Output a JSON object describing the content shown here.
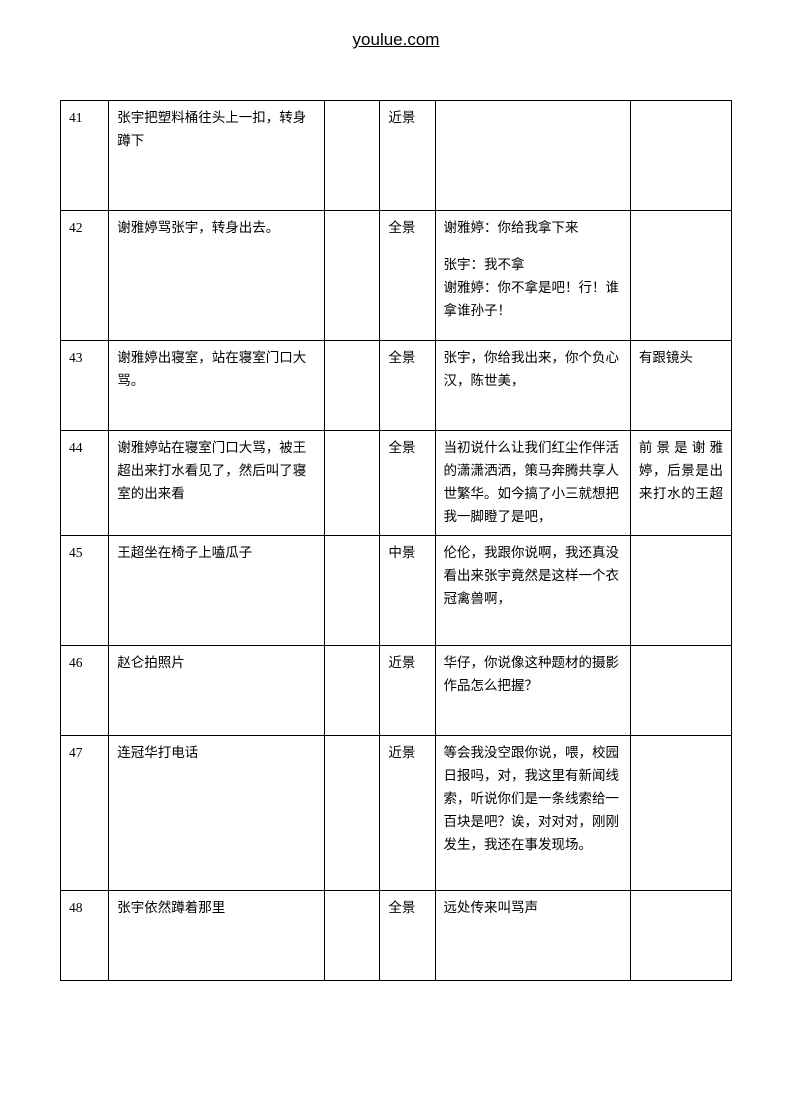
{
  "header": {
    "title": "youlue.com"
  },
  "table": {
    "columns": {
      "c1": 42,
      "c2": 188,
      "c3": 48,
      "c4": 48,
      "c5": 170,
      "c6": 88
    },
    "border_color": "#000000",
    "font_family": "SimSun",
    "rows": [
      {
        "no": "41",
        "action": "张宇把塑料桶往头上一扣，转身蹲下",
        "col3": "",
        "shot": "近景",
        "dialogue": "",
        "note": ""
      },
      {
        "no": "42",
        "action": "谢雅婷骂张宇，转身出去。",
        "col3": "",
        "shot": "全景",
        "dialogue_lines": [
          "谢雅婷：你给我拿下来",
          "",
          "张宇：我不拿",
          "谢雅婷：你不拿是吧！行！谁拿谁孙子！"
        ],
        "note": ""
      },
      {
        "no": "43",
        "action": "谢雅婷出寝室，站在寝室门口大骂。",
        "col3": "",
        "shot": "全景",
        "dialogue": "张宇，你给我出来，你个负心汉，陈世美，",
        "note": "有跟镜头"
      },
      {
        "no": "44",
        "action": "谢雅婷站在寝室门口大骂，被王超出来打水看见了，然后叫了寝室的出来看",
        "col3": "",
        "shot": "全景",
        "dialogue": "当初说什么让我们红尘作伴活的潇潇洒洒，策马奔腾共享人世繁华。如今搞了小三就想把我一脚瞪了是吧，",
        "note": "前景是谢雅婷，后景是出来打水的王超"
      },
      {
        "no": "45",
        "action": "王超坐在椅子上嗑瓜子",
        "col3": "",
        "shot": "中景",
        "dialogue": "伦伦，我跟你说啊，我还真没看出来张宇竟然是这样一个衣冠禽兽啊，",
        "note": ""
      },
      {
        "no": "46",
        "action": "赵仑拍照片",
        "col3": "",
        "shot": "近景",
        "dialogue": "华仔，你说像这种题材的摄影作品怎么把握？",
        "note": ""
      },
      {
        "no": "47",
        "action": "连冠华打电话",
        "col3": "",
        "shot": "近景",
        "dialogue": "等会我没空跟你说，喂，校园日报吗，对，我这里有新闻线索，听说你们是一条线索给一百块是吧？诶，对对对，刚刚发生，我还在事发现场。",
        "note": ""
      },
      {
        "no": "48",
        "action": "张宇依然蹲着那里",
        "col3": "",
        "shot": "全景",
        "dialogue": "远处传来叫骂声",
        "note": ""
      }
    ]
  }
}
